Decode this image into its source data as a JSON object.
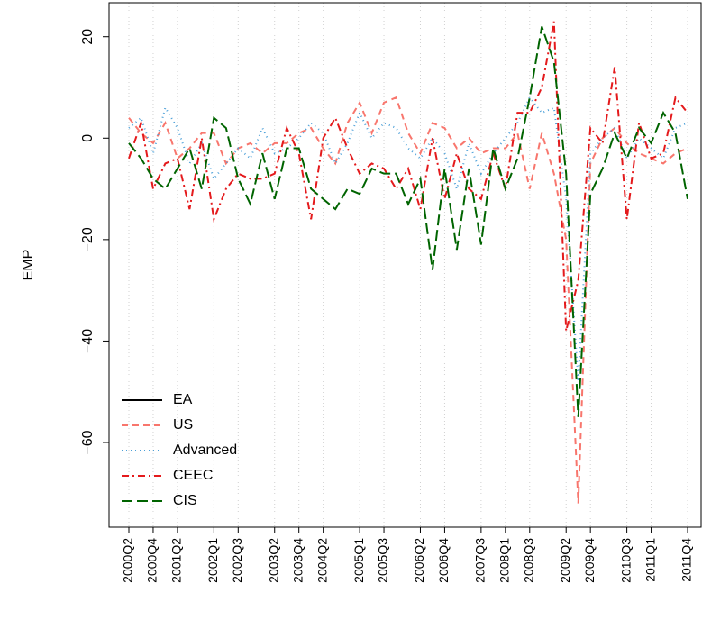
{
  "chart_data": {
    "type": "line",
    "y_label": "EMP",
    "categories": [
      "2000Q2",
      null,
      "2000Q4",
      null,
      "2001Q2",
      null,
      null,
      "2002Q1",
      null,
      "2002Q3",
      null,
      null,
      "2003Q2",
      null,
      "2003Q4",
      null,
      "2004Q2",
      null,
      null,
      "2005Q1",
      null,
      "2005Q3",
      null,
      null,
      "2006Q2",
      null,
      "2006Q4",
      null,
      null,
      "2007Q3",
      null,
      "2008Q1",
      null,
      "2008Q3",
      null,
      null,
      "2009Q2",
      null,
      "2009Q4",
      null,
      null,
      "2010Q3",
      null,
      "2011Q1",
      null,
      null,
      "2011Q4"
    ],
    "ylim": [
      -76.7,
      26.7
    ],
    "yticks": [
      {
        "value": -60,
        "label": "−60"
      },
      {
        "value": -40,
        "label": "−40"
      },
      {
        "value": -20,
        "label": "−20"
      },
      0,
      20
    ],
    "x_grid": true,
    "legend": "bottom-left",
    "series": [
      {
        "name": "EA",
        "color": "#000000",
        "dash": "solid",
        "values": [
          null,
          null,
          null,
          null,
          null,
          null,
          null,
          null,
          null,
          null,
          null,
          null,
          null,
          null,
          null,
          null,
          null,
          null,
          null,
          null,
          null,
          null,
          null,
          null,
          null,
          null,
          null,
          null,
          null,
          null,
          null,
          null,
          null,
          null,
          null,
          null,
          null,
          null,
          null,
          null,
          null,
          null,
          null,
          null,
          null,
          null,
          null
        ]
      },
      {
        "name": "US",
        "color": "#f8766d",
        "dash": "dashed",
        "values": [
          4,
          1,
          -1,
          3,
          -4,
          -2,
          1,
          1,
          -5,
          -2,
          -1,
          -3,
          -1,
          -1,
          1,
          2,
          -2,
          -5,
          3,
          7,
          1,
          7,
          8,
          1,
          -3,
          3,
          2,
          -2,
          0,
          -3,
          -2,
          -2,
          1,
          -10,
          1,
          -7,
          -20,
          -72,
          -5,
          0,
          2,
          -1,
          -3,
          -4,
          -5,
          -3,
          -2
        ]
      },
      {
        "name": "Advanced",
        "color": "#4a9fd8",
        "dash": "dotted",
        "values": [
          2,
          4,
          -3,
          6,
          2,
          -5,
          -1,
          -8,
          -5,
          -2,
          -4,
          2,
          -3,
          -2,
          0,
          3,
          1,
          -5,
          -1,
          5,
          0,
          3,
          2,
          -2,
          -4,
          0,
          -3,
          -10,
          -1,
          -7,
          -3,
          0,
          3,
          8,
          5,
          6,
          -12,
          -48,
          -3,
          0,
          2,
          -4,
          0,
          -2,
          -4,
          2,
          3
        ]
      },
      {
        "name": "CEEC",
        "color": "#e41a1c",
        "dash": "dotdash",
        "values": [
          -4,
          3,
          -10,
          -5,
          -4,
          -14,
          0,
          -16,
          -10,
          -7,
          -8,
          -8,
          -7,
          2,
          -3,
          -16,
          0,
          4,
          -2,
          -7,
          -5,
          -6,
          -10,
          -6,
          -14,
          0,
          -12,
          -3,
          -10,
          -12,
          -3,
          -10,
          5,
          5,
          10,
          23,
          -38,
          -28,
          2,
          -1,
          14,
          -16,
          3,
          -4,
          -3,
          8,
          5
        ]
      },
      {
        "name": "CIS",
        "color": "#006400",
        "dash": "longdash",
        "values": [
          -1,
          -4,
          -8,
          -10,
          -6,
          -2,
          -10,
          4,
          2,
          -8,
          -13,
          -3,
          -12,
          -2,
          -2,
          -10,
          -12,
          -14,
          -10,
          -11,
          -6,
          -7,
          -7,
          -13,
          -8,
          -26,
          -6,
          -22,
          -6,
          -21,
          -2,
          -10,
          -4,
          8,
          22,
          15,
          -7,
          -55,
          -11,
          -6,
          1,
          -4,
          2,
          -1,
          5,
          1,
          -12
        ]
      }
    ]
  }
}
